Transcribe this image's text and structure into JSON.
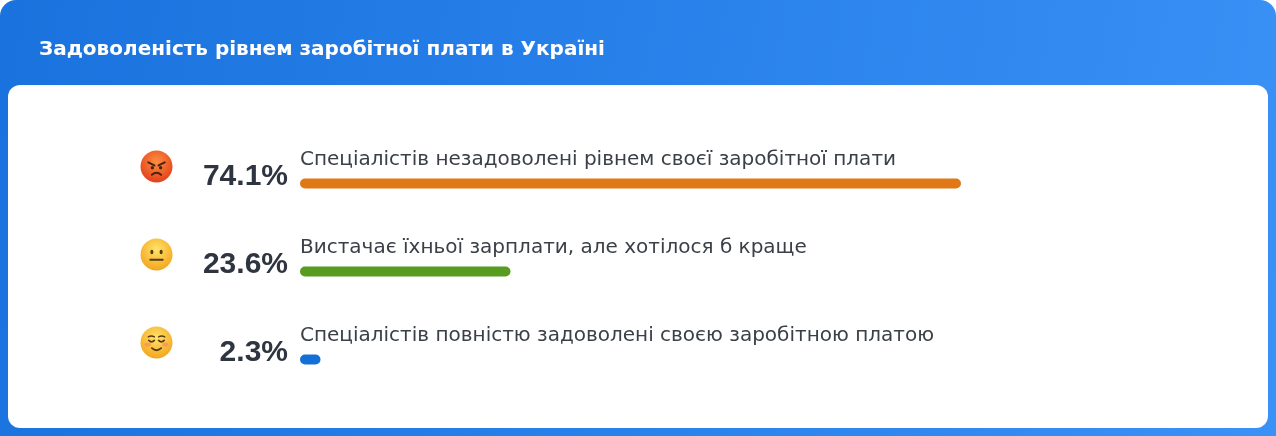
{
  "chart_data": {
    "type": "bar",
    "orientation": "horizontal",
    "title": "Задоволеність рівнем заробітної плати в Україні",
    "categories": [
      "Спеціалістів незадоволені рівнем своєї заробітної плати",
      "Вистачає їхньої зарплати, але хотілося б краще",
      "Спеціалістів повністю задоволені своєю заробітною платою"
    ],
    "values": [
      74.1,
      23.6,
      2.3
    ],
    "value_labels": [
      "74.1%",
      "23.6%",
      "2.3%"
    ],
    "colors": [
      "#e07815",
      "#579c1f",
      "#1470d6"
    ]
  }
}
